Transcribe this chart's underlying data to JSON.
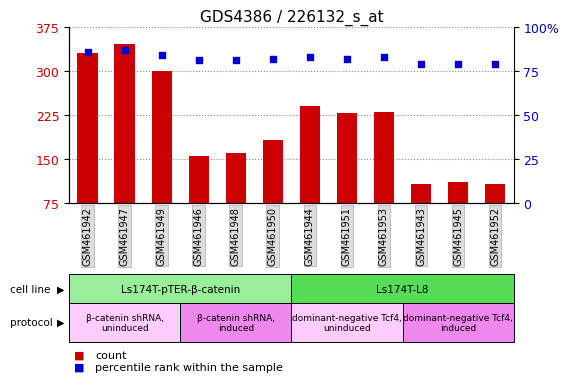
{
  "title": "GDS4386 / 226132_s_at",
  "samples": [
    "GSM461942",
    "GSM461947",
    "GSM461949",
    "GSM461946",
    "GSM461948",
    "GSM461950",
    "GSM461944",
    "GSM461951",
    "GSM461953",
    "GSM461943",
    "GSM461945",
    "GSM461952"
  ],
  "counts": [
    330,
    345,
    300,
    155,
    160,
    183,
    240,
    228,
    230,
    108,
    112,
    108
  ],
  "percentiles": [
    86,
    87,
    84,
    81,
    81,
    82,
    83,
    82,
    83,
    79,
    79,
    79
  ],
  "ylim_left": [
    75,
    375
  ],
  "ylim_right": [
    0,
    100
  ],
  "yticks_left": [
    75,
    150,
    225,
    300,
    375
  ],
  "yticks_right": [
    0,
    25,
    50,
    75,
    100
  ],
  "bar_color": "#cc0000",
  "dot_color": "#0000cc",
  "cell_line_groups": [
    {
      "label": "Ls174T-pTER-β-catenin",
      "start": 0,
      "end": 6,
      "color": "#99ee99"
    },
    {
      "label": "Ls174T-L8",
      "start": 6,
      "end": 12,
      "color": "#55dd55"
    }
  ],
  "protocol_groups": [
    {
      "label": "β-catenin shRNA,\nuninduced",
      "start": 0,
      "end": 3,
      "color": "#ffccff"
    },
    {
      "label": "β-catenin shRNA,\ninduced",
      "start": 3,
      "end": 6,
      "color": "#ee88ee"
    },
    {
      "label": "dominant-negative Tcf4,\nuninduced",
      "start": 6,
      "end": 9,
      "color": "#ffccff"
    },
    {
      "label": "dominant-negative Tcf4,\ninduced",
      "start": 9,
      "end": 12,
      "color": "#ee88ee"
    }
  ],
  "xtick_bg": "#dddddd",
  "grid_color": "#888888",
  "bg_color": "#ffffff",
  "tick_label_color_left": "#cc0000",
  "tick_label_color_right": "#0000cc",
  "title_fontsize": 11,
  "axis_fontsize": 9,
  "xtick_fontsize": 7,
  "legend_fontsize": 8
}
